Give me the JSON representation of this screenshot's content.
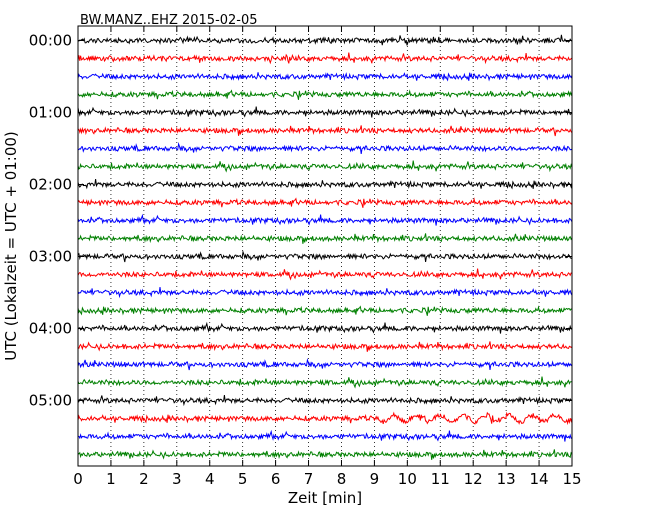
{
  "chart_data": {
    "type": "line",
    "title": "BW.MANZ..EHZ 2015-02-05",
    "xlabel": "Zeit  [min]",
    "ylabel": "UTC (Lokalzeit = UTC + 01:00)",
    "xlim": [
      0,
      15
    ],
    "x_ticks": [
      "0",
      "1",
      "2",
      "3",
      "4",
      "5",
      "6",
      "7",
      "8",
      "9",
      "10",
      "11",
      "12",
      "13",
      "14",
      "15"
    ],
    "y_ticks": [
      "00:00",
      "01:00",
      "02:00",
      "03:00",
      "04:00",
      "05:00"
    ],
    "grid": "vertical dotted",
    "line_colors": [
      "#000000",
      "#ff0000",
      "#0000ff",
      "#008000"
    ],
    "trace_count": 24,
    "trace_interval_min": 15
  }
}
